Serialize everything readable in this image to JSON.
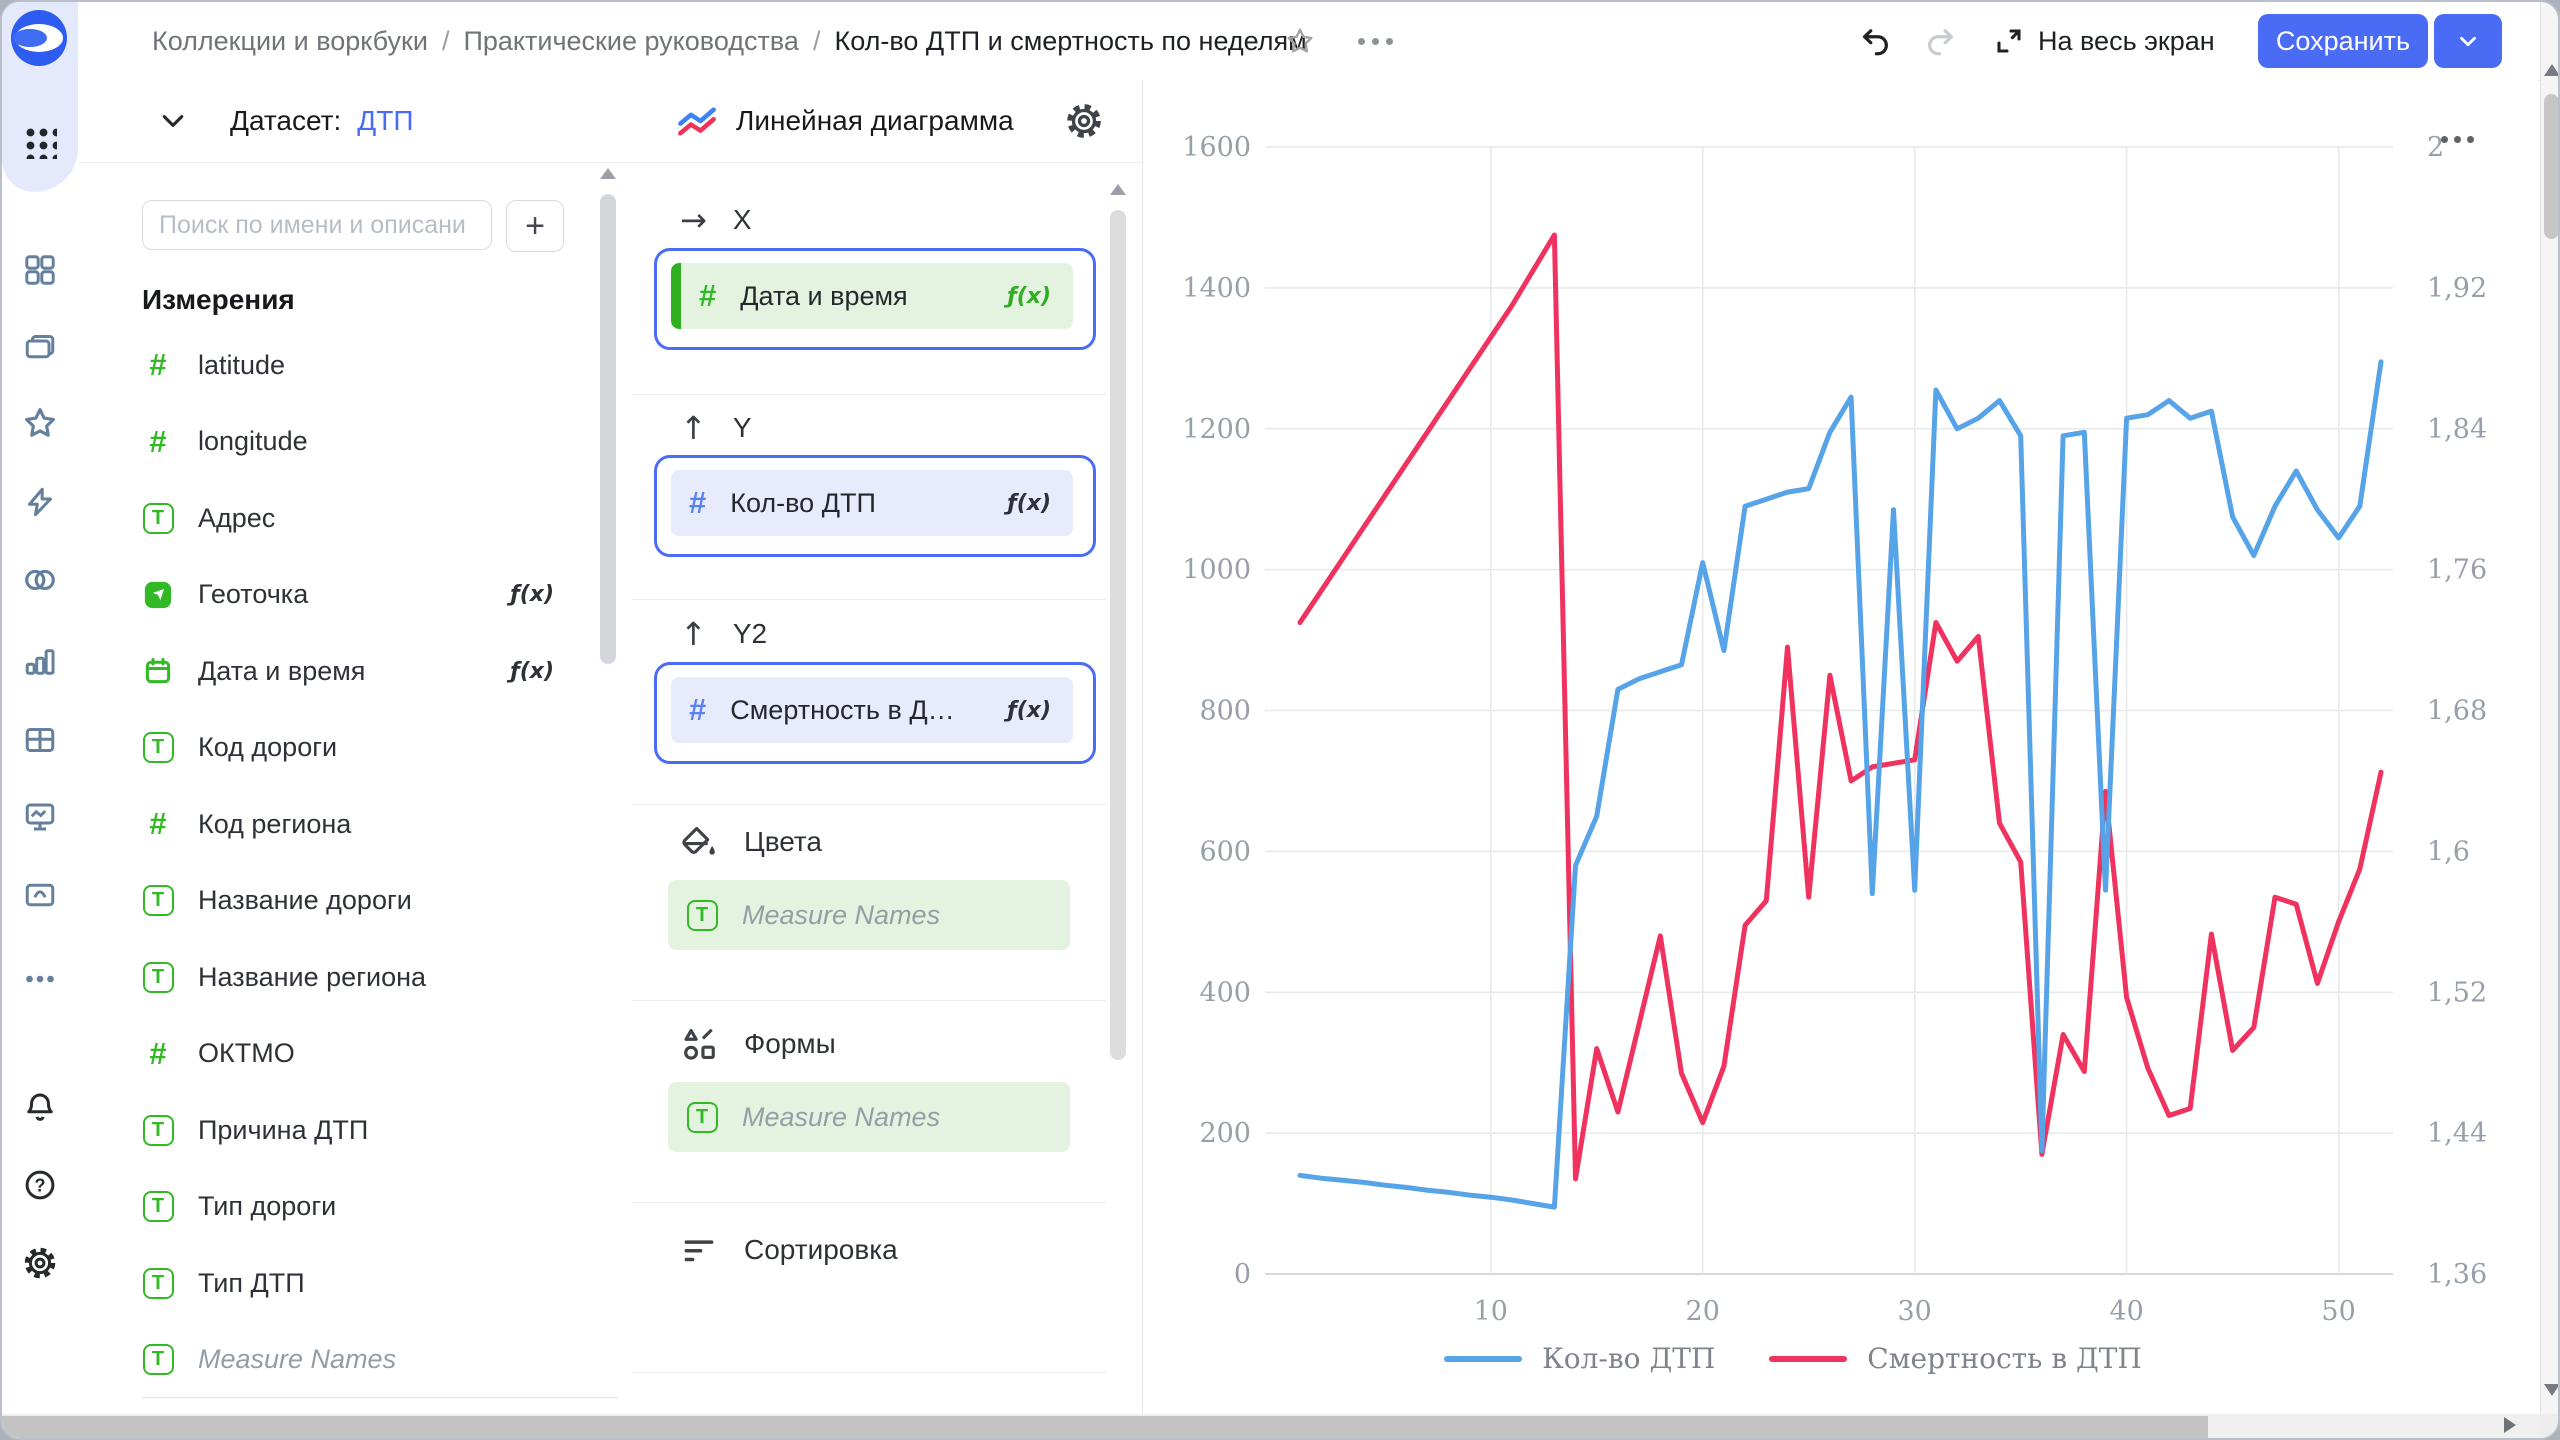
{
  "colors": {
    "accent": "#4a6cf5",
    "field_green": "#33b826",
    "measure_blue": "#5a81f2",
    "line_blue": "#57a3e8",
    "line_red": "#f0325f",
    "pill_green_bg": "#e4f3e0",
    "pill_blue_bg": "#e7ebfc"
  },
  "topbar": {
    "breadcrumb": [
      "Коллекции и воркбуки",
      "Практические руководства",
      "Кол-во ДТП и смертность по неделям"
    ],
    "fullscreen_label": "На весь экран",
    "save_label": "Сохранить"
  },
  "rail_icons": [
    "datalens-logo",
    "apps-grid",
    "dashboards",
    "collections",
    "favorites",
    "quick-actions",
    "connections",
    "charts",
    "tables",
    "monitoring",
    "storage",
    "more",
    "notifications",
    "help",
    "settings"
  ],
  "dataset": {
    "header_label": "Датасет:",
    "dataset_name": "ДТП",
    "search_placeholder": "Поиск по имени и описани",
    "add_button": "+",
    "section_title": "Измерения",
    "fields": [
      {
        "name": "latitude",
        "icon": "number"
      },
      {
        "name": "longitude",
        "icon": "number"
      },
      {
        "name": "Адрес",
        "icon": "text"
      },
      {
        "name": "Геоточка",
        "icon": "geopoint",
        "formula": true
      },
      {
        "name": "Дата и время",
        "icon": "calendar",
        "formula": true
      },
      {
        "name": "Код дороги",
        "icon": "text"
      },
      {
        "name": "Код региона",
        "icon": "number"
      },
      {
        "name": "Название дороги",
        "icon": "text"
      },
      {
        "name": "Название региона",
        "icon": "text"
      },
      {
        "name": "ОКТМО",
        "icon": "number"
      },
      {
        "name": "Причина ДТП",
        "icon": "text"
      },
      {
        "name": "Тип дороги",
        "icon": "text"
      },
      {
        "name": "Тип ДТП",
        "icon": "text"
      },
      {
        "name": "Measure Names",
        "icon": "text",
        "italic": true
      }
    ]
  },
  "config": {
    "chart_type": "Линейная диаграмма",
    "sections": [
      {
        "id": "x",
        "label": "X",
        "icon": "arrow-right",
        "pill": {
          "text": "Дата и время",
          "icon": "number",
          "bg": "green",
          "accent_bar": true,
          "formula": true,
          "formula_green": true,
          "outlined": true
        }
      },
      {
        "id": "y",
        "label": "Y",
        "icon": "arrow-up",
        "pill": {
          "text": "Кол-во ДТП",
          "icon": "number-blue",
          "bg": "blue",
          "formula": true,
          "outlined": true
        }
      },
      {
        "id": "y2",
        "label": "Y2",
        "icon": "arrow-up",
        "pill": {
          "text": "Смертность в Д…",
          "icon": "number-blue",
          "bg": "blue",
          "formula": true,
          "outlined": true
        }
      },
      {
        "id": "colors",
        "label": "Цвета",
        "icon": "paint",
        "pill": {
          "text": "Measure Names",
          "icon": "text",
          "bg": "green",
          "italic": true
        }
      },
      {
        "id": "shapes",
        "label": "Формы",
        "icon": "shapes",
        "pill": {
          "text": "Measure Names",
          "icon": "text",
          "bg": "green",
          "italic": true
        }
      },
      {
        "id": "sort",
        "label": "Сортировка",
        "icon": "sort",
        "pill": null
      }
    ]
  },
  "chart_data": {
    "type": "line",
    "x_label": "",
    "x_range": [
      1,
      52
    ],
    "x_ticks": [
      10,
      20,
      30,
      40,
      50
    ],
    "y_left": {
      "min": 0,
      "max": 1600,
      "ticks": [
        "0",
        "200",
        "400",
        "600",
        "800",
        "1000",
        "1200",
        "1400",
        "1600"
      ]
    },
    "y_right": {
      "min": 1.36,
      "max": 2.0,
      "ticks": [
        "1,36",
        "1,44",
        "1,52",
        "1,6",
        "1,68",
        "1,76",
        "1,84",
        "1,92",
        "2"
      ]
    },
    "grid": true,
    "legend_position": "bottom",
    "series": [
      {
        "name": "Кол-во ДТП",
        "axis": "left",
        "color": "#57a3e8",
        "values": [
          140,
          136,
          133,
          130,
          126,
          123,
          119,
          116,
          112,
          109,
          105,
          100,
          95,
          580,
          650,
          830,
          845,
          855,
          865,
          1010,
          885,
          1090,
          1100,
          1110,
          1115,
          1195,
          1245,
          540,
          1085,
          545,
          1255,
          1200,
          1215,
          1240,
          1190,
          175,
          1190,
          1195,
          545,
          1215,
          1220,
          1240,
          1215,
          1225,
          1075,
          1020,
          1090,
          1140,
          1085,
          1045,
          1090,
          1295
        ]
      },
      {
        "name": "Смертность в ДТП",
        "axis": "right",
        "color": "#f0325f",
        "values": [
          1.73,
          1.748,
          1.766,
          1.784,
          1.802,
          1.82,
          1.838,
          1.856,
          1.874,
          1.892,
          1.91,
          1.93,
          1.95,
          1.414,
          1.488,
          1.452,
          1.502,
          1.552,
          1.474,
          1.446,
          1.478,
          1.558,
          1.572,
          1.716,
          1.574,
          1.7,
          1.64,
          1.648,
          1.65,
          1.652,
          1.73,
          1.708,
          1.722,
          1.616,
          1.594,
          1.428,
          1.496,
          1.475,
          1.634,
          1.517,
          1.477,
          1.45,
          1.454,
          1.553,
          1.487,
          1.5,
          1.574,
          1.57,
          1.525,
          1.56,
          1.59,
          1.645
        ]
      }
    ]
  }
}
